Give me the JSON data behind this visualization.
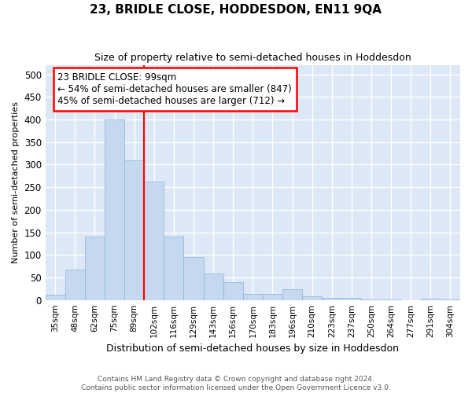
{
  "title": "23, BRIDLE CLOSE, HODDESDON, EN11 9QA",
  "subtitle": "Size of property relative to semi-detached houses in Hoddesdon",
  "xlabel": "Distribution of semi-detached houses by size in Hoddesdon",
  "ylabel": "Number of semi-detached properties",
  "bins": [
    "35sqm",
    "48sqm",
    "62sqm",
    "75sqm",
    "89sqm",
    "102sqm",
    "116sqm",
    "129sqm",
    "143sqm",
    "156sqm",
    "170sqm",
    "183sqm",
    "196sqm",
    "210sqm",
    "223sqm",
    "237sqm",
    "250sqm",
    "264sqm",
    "277sqm",
    "291sqm",
    "304sqm"
  ],
  "values": [
    11,
    67,
    140,
    400,
    310,
    263,
    140,
    95,
    58,
    40,
    13,
    14,
    23,
    9,
    5,
    4,
    2,
    1,
    0,
    3,
    2
  ],
  "bar_color": "#c5d8f0",
  "bar_edge_color": "#8ab4d8",
  "vline_x_index": 5,
  "vline_color": "red",
  "annotation_text": "23 BRIDLE CLOSE: 99sqm\n← 54% of semi-detached houses are smaller (847)\n45% of semi-detached houses are larger (712) →",
  "annotation_box_color": "white",
  "annotation_box_edge": "red",
  "bg_color": "#dce8f5",
  "grid_color": "white",
  "footer_line1": "Contains HM Land Registry data © Crown copyright and database right 2024.",
  "footer_line2": "Contains public sector information licensed under the Open Government Licence v3.0.",
  "ylim": [
    0,
    520
  ],
  "yticks": [
    0,
    50,
    100,
    150,
    200,
    250,
    300,
    350,
    400,
    450,
    500
  ]
}
